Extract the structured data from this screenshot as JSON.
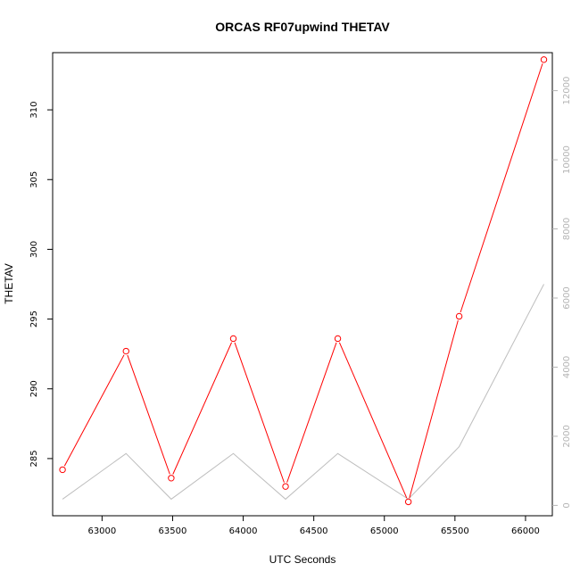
{
  "chart_data": {
    "type": "line",
    "title": "ORCAS RF07upwind THETAV",
    "xlabel": "UTC Seconds",
    "ylabel": "THETAV",
    "xlim": [
      62650,
      66190
    ],
    "ylim": [
      280.9,
      314.1
    ],
    "y2lim": [
      -300,
      13100
    ],
    "x_ticks": [
      63000,
      63500,
      64000,
      64500,
      65000,
      65500,
      66000
    ],
    "y_ticks": [
      285,
      290,
      295,
      300,
      305,
      310
    ],
    "y2_ticks": [
      0,
      2000,
      4000,
      6000,
      8000,
      10000,
      12000
    ],
    "grid": false,
    "series": [
      {
        "axis": "left",
        "color": "#ff0000",
        "markers": "open-circle",
        "x": [
          62720,
          63170,
          63490,
          63930,
          64300,
          64670,
          65170,
          65530,
          66130
        ],
        "y": [
          284.2,
          292.7,
          283.6,
          293.6,
          283.0,
          293.6,
          281.9,
          295.2,
          313.6
        ]
      },
      {
        "axis": "right",
        "color": "#bebebe",
        "markers": "none",
        "x": [
          62720,
          63170,
          63490,
          63930,
          64300,
          64670,
          65170,
          65530,
          66130
        ],
        "y": [
          180,
          1500,
          180,
          1500,
          180,
          1500,
          180,
          1700,
          6400
        ]
      }
    ]
  }
}
